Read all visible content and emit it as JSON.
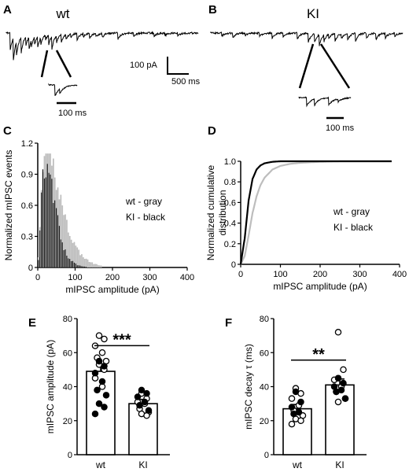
{
  "panels": {
    "A": {
      "label": "A",
      "title": "wt",
      "inset_scale": "100 ms"
    },
    "B": {
      "label": "B",
      "title": "KI",
      "inset_scale": "100 ms"
    },
    "scale_bar": {
      "amplitude": "100 pA",
      "time": "500 ms"
    },
    "C": {
      "label": "C"
    },
    "D": {
      "label": "D"
    },
    "E": {
      "label": "E"
    },
    "F": {
      "label": "F"
    }
  },
  "colors": {
    "wt": "#bdbdbd",
    "KI": "#000000"
  },
  "chart_data": [
    {
      "id": "C",
      "type": "bar",
      "xlabel": "mIPSC amplitude (pA)",
      "ylabel": "Normalized mIPSC events",
      "xlim": [
        0,
        400
      ],
      "ylim": [
        0,
        1.2
      ],
      "xticks": [
        0,
        100,
        200,
        300,
        400
      ],
      "yticks": [
        0,
        0.3,
        0.6,
        0.9,
        1.2
      ],
      "ytick_labels": [
        "0",
        "0.3",
        "0.6",
        "0.9",
        "1.2"
      ],
      "legend": [
        "wt - gray",
        "KI - black"
      ],
      "legend_position": "right",
      "bin_width_pA": 4,
      "series": [
        {
          "name": "wt",
          "color": "#bdbdbd",
          "peak": 1.1
        },
        {
          "name": "KI",
          "color": "#000000",
          "peak": 1.0
        }
      ]
    },
    {
      "id": "D",
      "type": "line",
      "xlabel": "mIPSC amplitude (pA)",
      "ylabel": "Normalized cumulative distribution",
      "ylabel_lines": [
        "Normalized cumulative",
        "distribution"
      ],
      "xlim": [
        0,
        400
      ],
      "ylim": [
        0,
        1.0
      ],
      "xticks": [
        0,
        100,
        200,
        300,
        400
      ],
      "yticks": [
        0,
        0.2,
        0.4,
        0.6,
        0.8,
        1.0
      ],
      "ytick_labels": [
        "0",
        "0.2",
        "0.4",
        "0.6",
        "0.8",
        "1.0"
      ],
      "legend": [
        "wt - gray",
        "KI - black"
      ],
      "legend_position": "right",
      "series": [
        {
          "name": "wt",
          "color": "#bdbdbd",
          "x": [
            0,
            10,
            20,
            30,
            40,
            50,
            60,
            80,
            100,
            125,
            150,
            200,
            250,
            300,
            380
          ],
          "y": [
            0,
            0.08,
            0.28,
            0.5,
            0.66,
            0.77,
            0.84,
            0.92,
            0.955,
            0.975,
            0.985,
            0.995,
            1.0,
            1.0,
            1.0
          ]
        },
        {
          "name": "KI",
          "color": "#000000",
          "x": [
            0,
            10,
            20,
            30,
            40,
            50,
            60,
            80,
            100,
            125,
            150,
            200,
            250,
            300,
            380
          ],
          "y": [
            0,
            0.25,
            0.62,
            0.83,
            0.92,
            0.96,
            0.98,
            0.995,
            1.0,
            1.0,
            1.0,
            1.0,
            1.0,
            1.0,
            1.0
          ]
        }
      ]
    },
    {
      "id": "E",
      "type": "bar",
      "categories": [
        "wt",
        "KI"
      ],
      "values": [
        49,
        30
      ],
      "sem": [
        4,
        2.5
      ],
      "ylabel": "mIPSC amplitude (pA)",
      "ylim": [
        0,
        80
      ],
      "yticks": [
        0,
        20,
        40,
        60,
        80
      ],
      "significance": "***",
      "points": [
        {
          "group": "wt",
          "filled": false,
          "values": [
            70,
            68,
            64,
            60,
            57,
            55,
            53,
            50,
            45,
            40
          ]
        },
        {
          "group": "wt",
          "filled": true,
          "values": [
            55,
            52,
            48,
            43,
            38,
            35,
            30,
            28,
            24
          ]
        },
        {
          "group": "KI",
          "filled": false,
          "values": [
            36,
            33,
            31,
            30,
            27,
            25,
            24,
            23
          ]
        },
        {
          "group": "KI",
          "filled": true,
          "values": [
            38,
            36,
            34,
            31,
            29,
            26
          ]
        }
      ]
    },
    {
      "id": "F",
      "type": "bar",
      "categories": [
        "wt",
        "KI"
      ],
      "values": [
        27,
        41
      ],
      "sem": [
        2.5,
        3.5
      ],
      "ylabel": "mIPSC decay τ (ms)",
      "ylim": [
        0,
        80
      ],
      "yticks": [
        0,
        20,
        40,
        60,
        80
      ],
      "significance": "**",
      "points": [
        {
          "group": "wt",
          "filled": false,
          "values": [
            39,
            36,
            33,
            29,
            26,
            23,
            21,
            20,
            18
          ]
        },
        {
          "group": "wt",
          "filled": true,
          "values": [
            37,
            31,
            28,
            25,
            24
          ]
        },
        {
          "group": "KI",
          "filled": false,
          "values": [
            72,
            50,
            44,
            40,
            37,
            33,
            31
          ]
        },
        {
          "group": "KI",
          "filled": true,
          "values": [
            45,
            42,
            40,
            38,
            37,
            33
          ]
        }
      ]
    }
  ]
}
